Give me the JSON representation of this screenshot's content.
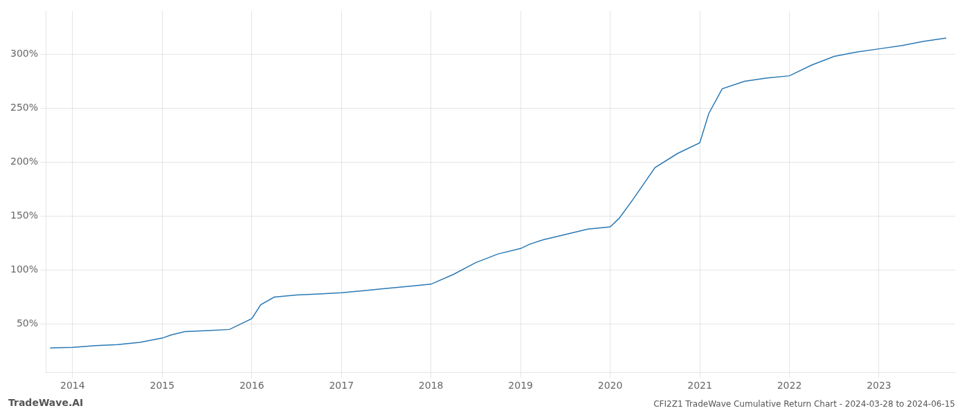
{
  "chart_data": {
    "type": "line",
    "title": "CFI2Z1 TradeWave Cumulative Return Chart - 2024-03-28 to 2024-06-15",
    "annotations": [
      "TradeWave.AI"
    ],
    "x": [
      2013.75,
      2014.0,
      2014.25,
      2014.5,
      2014.75,
      2015.0,
      2015.1,
      2015.25,
      2015.5,
      2015.75,
      2016.0,
      2016.1,
      2016.25,
      2016.5,
      2016.75,
      2017.0,
      2017.25,
      2017.5,
      2017.75,
      2018.0,
      2018.25,
      2018.5,
      2018.75,
      2019.0,
      2019.1,
      2019.25,
      2019.5,
      2019.75,
      2020.0,
      2020.1,
      2020.25,
      2020.5,
      2020.75,
      2021.0,
      2021.1,
      2021.25,
      2021.5,
      2021.75,
      2022.0,
      2022.25,
      2022.5,
      2022.75,
      2023.0,
      2023.25,
      2023.5,
      2023.75
    ],
    "values": [
      28,
      28.5,
      30,
      31,
      33,
      37,
      40,
      43,
      44,
      45,
      55,
      68,
      75,
      77,
      78,
      79,
      81,
      83,
      85,
      87,
      96,
      107,
      115,
      120,
      124,
      128,
      133,
      138,
      140,
      148,
      165,
      195,
      208,
      218,
      245,
      268,
      275,
      278,
      280,
      290,
      298,
      302,
      305,
      308,
      312,
      315
    ],
    "color": "#2878b5",
    "xlim": [
      2013.7,
      2023.85
    ],
    "xticks": [
      2014,
      2015,
      2016,
      2017,
      2018,
      2019,
      2020,
      2021,
      2022,
      2023
    ],
    "ylim": [
      5,
      340
    ],
    "yticks": [
      {
        "value": 50,
        "label": "50%"
      },
      {
        "value": 100,
        "label": "100%"
      },
      {
        "value": 150,
        "label": "150%"
      },
      {
        "value": 200,
        "label": "200%"
      },
      {
        "value": 250,
        "label": "250%"
      },
      {
        "value": 300,
        "label": "300%"
      }
    ],
    "grid": true
  }
}
